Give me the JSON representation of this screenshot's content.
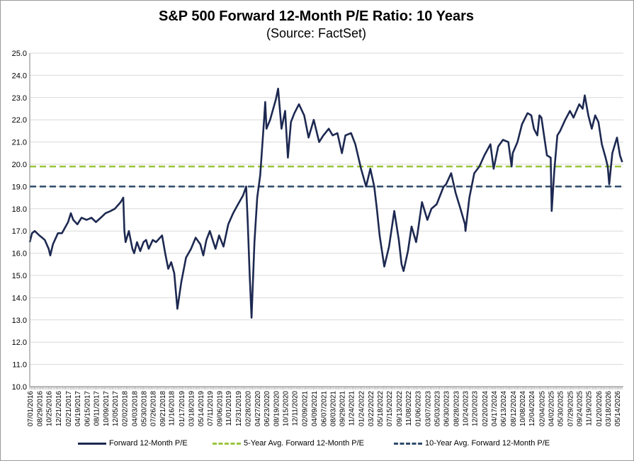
{
  "colors": {
    "pe_line": "#1d2951",
    "avg5_line": "#9ac53c",
    "avg10_line": "#2e4a6b",
    "axis": "#7f7f7f",
    "grid": "#d9d9d9"
  },
  "chart_data": {
    "type": "line",
    "title": "S&P 500 Forward 12-Month P/E Ratio: 10 Years",
    "subtitle": "(Source: FactSet)",
    "ylim": [
      10.0,
      25.0
    ],
    "y_ticks": [
      "25.0",
      "24.0",
      "23.0",
      "22.0",
      "21.0",
      "20.0",
      "19.0",
      "18.0",
      "17.0",
      "16.0",
      "15.0",
      "14.0",
      "13.0",
      "12.0",
      "11.0",
      "10.0"
    ],
    "x_tick_labels": [
      "07/01/2016",
      "08/29/2016",
      "10/25/2016",
      "12/21/2016",
      "02/21/2017",
      "04/19/2017",
      "06/15/2017",
      "08/11/2017",
      "10/09/2017",
      "12/05/2017",
      "02/02/2018",
      "04/03/2018",
      "05/30/2018",
      "07/26/2018",
      "09/21/2018",
      "11/16/2018",
      "01/17/2019",
      "03/18/2019",
      "05/14/2019",
      "07/11/2019",
      "09/06/2019",
      "11/01/2019",
      "12/31/2019",
      "02/28/2020",
      "04/27/2020",
      "06/23/2020",
      "08/19/2020",
      "10/15/2020",
      "12/11/2020",
      "02/09/2021",
      "04/09/2021",
      "06/07/2021",
      "08/03/2021",
      "09/29/2021",
      "11/24/2021",
      "01/24/2022",
      "03/22/2022",
      "05/18/2022",
      "07/15/2022",
      "09/13/2022",
      "11/08/2022",
      "01/06/2023",
      "03/07/2023",
      "05/03/2023",
      "06/30/2023",
      "08/28/2023",
      "10/24/2023",
      "12/20/2023",
      "02/20/2024",
      "04/17/2024",
      "06/13/2024",
      "08/12/2024",
      "10/08/2024",
      "12/04/2024",
      "02/04/2025",
      "04/02/2025",
      "05/30/2025",
      "07/29/2025",
      "09/24/2025",
      "11/19/2025",
      "01/20/2026",
      "03/18/2026",
      "05/14/2026"
    ],
    "grid": true,
    "legend_position": "bottom",
    "series": [
      {
        "name": "Forward 12-Month P/E",
        "style": "solid",
        "points": [
          [
            "07/01/2016",
            16.5
          ],
          [
            "07/15/2016",
            16.9
          ],
          [
            "08/01/2016",
            17.0
          ],
          [
            "08/29/2016",
            16.8
          ],
          [
            "09/15/2016",
            16.7
          ],
          [
            "10/01/2016",
            16.6
          ],
          [
            "10/25/2016",
            16.2
          ],
          [
            "11/04/2016",
            15.9
          ],
          [
            "11/20/2016",
            16.4
          ],
          [
            "12/21/2016",
            16.9
          ],
          [
            "01/15/2017",
            16.9
          ],
          [
            "02/21/2017",
            17.4
          ],
          [
            "03/10/2017",
            17.8
          ],
          [
            "03/25/2017",
            17.5
          ],
          [
            "04/19/2017",
            17.3
          ],
          [
            "05/15/2017",
            17.6
          ],
          [
            "06/15/2017",
            17.5
          ],
          [
            "07/15/2017",
            17.6
          ],
          [
            "08/11/2017",
            17.4
          ],
          [
            "09/10/2017",
            17.6
          ],
          [
            "10/09/2017",
            17.8
          ],
          [
            "11/10/2017",
            17.9
          ],
          [
            "12/05/2017",
            18.0
          ],
          [
            "01/10/2018",
            18.3
          ],
          [
            "01/26/2018",
            18.5
          ],
          [
            "02/02/2018",
            17.0
          ],
          [
            "02/09/2018",
            16.5
          ],
          [
            "03/01/2018",
            17.0
          ],
          [
            "03/23/2018",
            16.2
          ],
          [
            "04/03/2018",
            16.0
          ],
          [
            "04/20/2018",
            16.5
          ],
          [
            "05/10/2018",
            16.1
          ],
          [
            "05/30/2018",
            16.5
          ],
          [
            "06/15/2018",
            16.6
          ],
          [
            "07/01/2018",
            16.2
          ],
          [
            "07/26/2018",
            16.6
          ],
          [
            "08/15/2018",
            16.5
          ],
          [
            "09/21/2018",
            16.8
          ],
          [
            "10/10/2018",
            16.0
          ],
          [
            "10/29/2018",
            15.3
          ],
          [
            "11/16/2018",
            15.6
          ],
          [
            "12/05/2018",
            15.1
          ],
          [
            "12/24/2018",
            13.5
          ],
          [
            "01/17/2019",
            14.7
          ],
          [
            "02/15/2019",
            15.8
          ],
          [
            "03/18/2019",
            16.2
          ],
          [
            "04/15/2019",
            16.7
          ],
          [
            "05/14/2019",
            16.4
          ],
          [
            "06/01/2019",
            15.9
          ],
          [
            "06/20/2019",
            16.6
          ],
          [
            "07/11/2019",
            17.0
          ],
          [
            "08/15/2019",
            16.2
          ],
          [
            "09/06/2019",
            16.8
          ],
          [
            "10/03/2019",
            16.3
          ],
          [
            "11/01/2019",
            17.3
          ],
          [
            "12/01/2019",
            17.8
          ],
          [
            "12/31/2019",
            18.2
          ],
          [
            "01/31/2020",
            18.6
          ],
          [
            "02/19/2020",
            19.0
          ],
          [
            "02/28/2020",
            17.5
          ],
          [
            "03/12/2020",
            15.0
          ],
          [
            "03/23/2020",
            13.1
          ],
          [
            "04/10/2020",
            16.5
          ],
          [
            "04/27/2020",
            18.5
          ],
          [
            "05/15/2020",
            19.5
          ],
          [
            "06/08/2020",
            22.0
          ],
          [
            "06/15/2020",
            22.8
          ],
          [
            "06/23/2020",
            21.6
          ],
          [
            "07/15/2020",
            22.0
          ],
          [
            "08/19/2020",
            22.9
          ],
          [
            "09/02/2020",
            23.4
          ],
          [
            "09/23/2020",
            21.6
          ],
          [
            "10/15/2020",
            22.4
          ],
          [
            "11/01/2020",
            20.3
          ],
          [
            "11/20/2020",
            21.9
          ],
          [
            "12/11/2020",
            22.3
          ],
          [
            "01/08/2021",
            22.7
          ],
          [
            "02/09/2021",
            22.2
          ],
          [
            "03/08/2021",
            21.2
          ],
          [
            "04/09/2021",
            22.0
          ],
          [
            "05/12/2021",
            21.0
          ],
          [
            "06/07/2021",
            21.3
          ],
          [
            "07/10/2021",
            21.6
          ],
          [
            "08/03/2021",
            21.3
          ],
          [
            "09/01/2021",
            21.4
          ],
          [
            "09/29/2021",
            20.5
          ],
          [
            "10/20/2021",
            21.3
          ],
          [
            "11/24/2021",
            21.4
          ],
          [
            "12/20/2021",
            20.9
          ],
          [
            "01/24/2022",
            19.8
          ],
          [
            "02/24/2022",
            19.0
          ],
          [
            "03/22/2022",
            19.8
          ],
          [
            "04/15/2022",
            19.0
          ],
          [
            "05/01/2022",
            18.0
          ],
          [
            "05/18/2022",
            16.8
          ],
          [
            "06/16/2022",
            15.4
          ],
          [
            "07/15/2022",
            16.3
          ],
          [
            "08/16/2022",
            17.9
          ],
          [
            "09/13/2022",
            16.6
          ],
          [
            "09/30/2022",
            15.5
          ],
          [
            "10/12/2022",
            15.2
          ],
          [
            "11/08/2022",
            16.1
          ],
          [
            "11/30/2022",
            17.2
          ],
          [
            "12/28/2022",
            16.5
          ],
          [
            "01/06/2023",
            16.9
          ],
          [
            "02/02/2023",
            18.3
          ],
          [
            "03/07/2023",
            17.5
          ],
          [
            "04/01/2023",
            18.0
          ],
          [
            "05/03/2023",
            18.2
          ],
          [
            "06/15/2023",
            19.0
          ],
          [
            "06/30/2023",
            19.1
          ],
          [
            "07/31/2023",
            19.6
          ],
          [
            "08/28/2023",
            18.7
          ],
          [
            "09/26/2023",
            18.0
          ],
          [
            "10/24/2023",
            17.3
          ],
          [
            "10/27/2023",
            17.0
          ],
          [
            "11/20/2023",
            18.5
          ],
          [
            "12/20/2023",
            19.6
          ],
          [
            "01/20/2024",
            19.9
          ],
          [
            "02/20/2024",
            20.4
          ],
          [
            "03/28/2024",
            20.9
          ],
          [
            "04/17/2024",
            19.8
          ],
          [
            "05/15/2024",
            20.8
          ],
          [
            "06/13/2024",
            21.1
          ],
          [
            "07/16/2024",
            21.0
          ],
          [
            "08/05/2024",
            19.9
          ],
          [
            "08/12/2024",
            20.5
          ],
          [
            "09/10/2024",
            21.0
          ],
          [
            "10/08/2024",
            21.8
          ],
          [
            "11/11/2024",
            22.3
          ],
          [
            "12/04/2024",
            22.2
          ],
          [
            "12/20/2024",
            21.6
          ],
          [
            "01/10/2025",
            21.3
          ],
          [
            "01/23/2025",
            22.2
          ],
          [
            "02/04/2025",
            22.1
          ],
          [
            "03/10/2025",
            20.4
          ],
          [
            "04/02/2025",
            20.3
          ],
          [
            "04/08/2025",
            17.9
          ],
          [
            "04/25/2025",
            19.8
          ],
          [
            "05/13/2025",
            21.3
          ],
          [
            "05/30/2025",
            21.5
          ],
          [
            "06/30/2025",
            22.0
          ],
          [
            "07/29/2025",
            22.4
          ],
          [
            "08/20/2025",
            22.1
          ],
          [
            "09/24/2025",
            22.7
          ],
          [
            "10/15/2025",
            22.5
          ],
          [
            "10/28/2025",
            23.1
          ],
          [
            "11/19/2025",
            22.2
          ],
          [
            "12/10/2025",
            21.6
          ],
          [
            "12/31/2025",
            22.2
          ],
          [
            "01/20/2026",
            21.9
          ],
          [
            "02/10/2026",
            20.9
          ],
          [
            "03/05/2026",
            20.3
          ],
          [
            "03/18/2026",
            19.9
          ],
          [
            "03/27/2026",
            19.1
          ],
          [
            "04/15/2026",
            20.5
          ],
          [
            "05/14/2026",
            21.2
          ],
          [
            "06/01/2026",
            20.4
          ],
          [
            "06/15/2026",
            20.1
          ]
        ]
      },
      {
        "name": "5-Year Avg. Forward 12-Month P/E",
        "style": "dashed",
        "value": 19.9
      },
      {
        "name": "10-Year Avg. Forward 12-Month P/E",
        "style": "dashed",
        "value": 19.0
      }
    ]
  }
}
